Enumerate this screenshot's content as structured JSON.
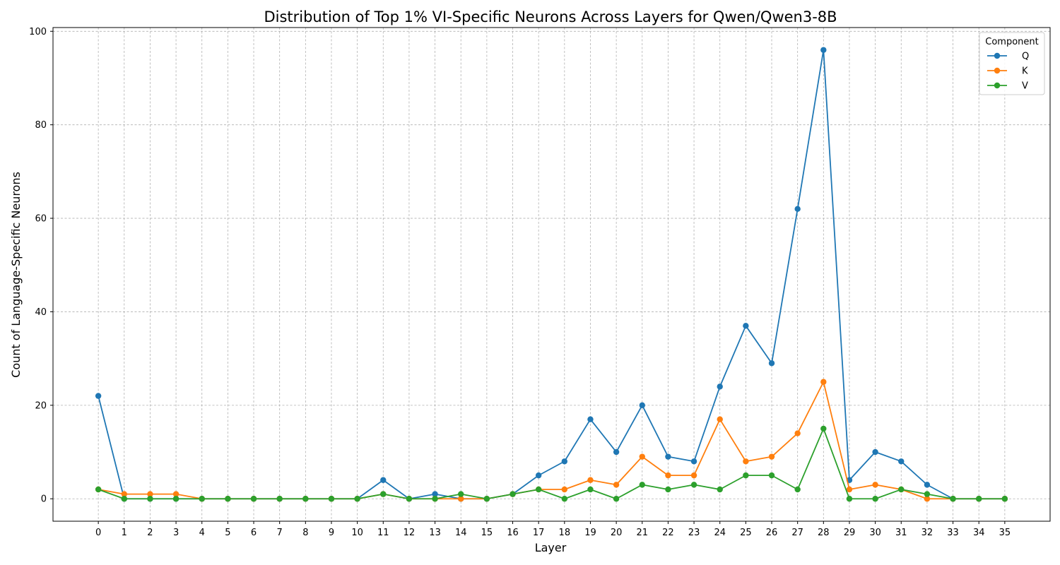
{
  "chart_data": {
    "type": "line",
    "title": "Distribution of Top 1% VI-Specific Neurons Across Layers for Qwen/Qwen3-8B",
    "xlabel": "Layer",
    "ylabel": "Count of Language-Specific Neurons",
    "x": [
      0,
      1,
      2,
      3,
      4,
      5,
      6,
      7,
      8,
      9,
      10,
      11,
      12,
      13,
      14,
      15,
      16,
      17,
      18,
      19,
      20,
      21,
      22,
      23,
      24,
      25,
      26,
      27,
      28,
      29,
      30,
      31,
      32,
      33,
      34,
      35
    ],
    "xlim": [
      -1.75,
      36.75
    ],
    "ylim": [
      -4.8,
      100.8
    ],
    "yticks": [
      0,
      20,
      40,
      60,
      80,
      100
    ],
    "grid": true,
    "legend": {
      "title": "Component",
      "placement": "top-right"
    },
    "series": [
      {
        "name": "Q",
        "color": "#1f77b4",
        "values": [
          22,
          0,
          0,
          0,
          0,
          0,
          0,
          0,
          0,
          0,
          0,
          4,
          0,
          1,
          0,
          0,
          1,
          5,
          8,
          17,
          10,
          20,
          9,
          8,
          24,
          37,
          29,
          62,
          96,
          4,
          10,
          8,
          3,
          0,
          0,
          0
        ]
      },
      {
        "name": "K",
        "color": "#ff7f0e",
        "values": [
          2,
          1,
          1,
          1,
          0,
          0,
          0,
          0,
          0,
          0,
          0,
          1,
          0,
          0,
          0,
          0,
          1,
          2,
          2,
          4,
          3,
          9,
          5,
          5,
          17,
          8,
          9,
          14,
          25,
          2,
          3,
          2,
          0,
          0,
          0,
          0
        ]
      },
      {
        "name": "V",
        "color": "#2ca02c",
        "values": [
          2,
          0,
          0,
          0,
          0,
          0,
          0,
          0,
          0,
          0,
          0,
          1,
          0,
          0,
          1,
          0,
          1,
          2,
          0,
          2,
          0,
          3,
          2,
          3,
          2,
          5,
          5,
          2,
          15,
          0,
          0,
          2,
          1,
          0,
          0,
          0
        ]
      }
    ]
  }
}
